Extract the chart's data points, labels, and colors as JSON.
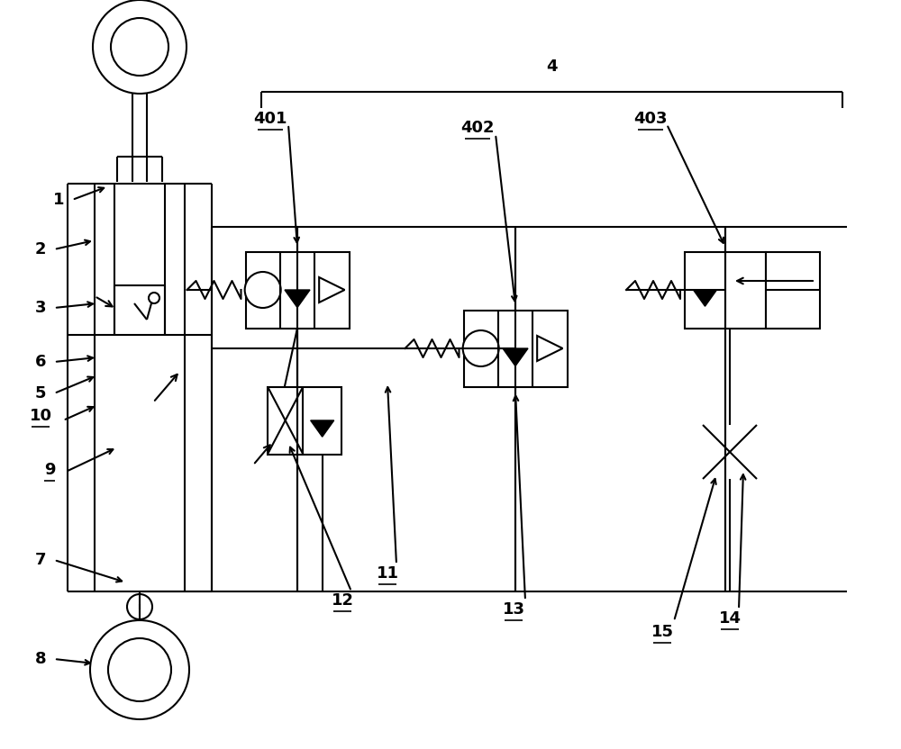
{
  "bg_color": "#ffffff",
  "line_color": "#000000",
  "lw": 1.5,
  "thin_lw": 1.0,
  "figsize": [
    10.0,
    8.32
  ],
  "dpi": 100
}
